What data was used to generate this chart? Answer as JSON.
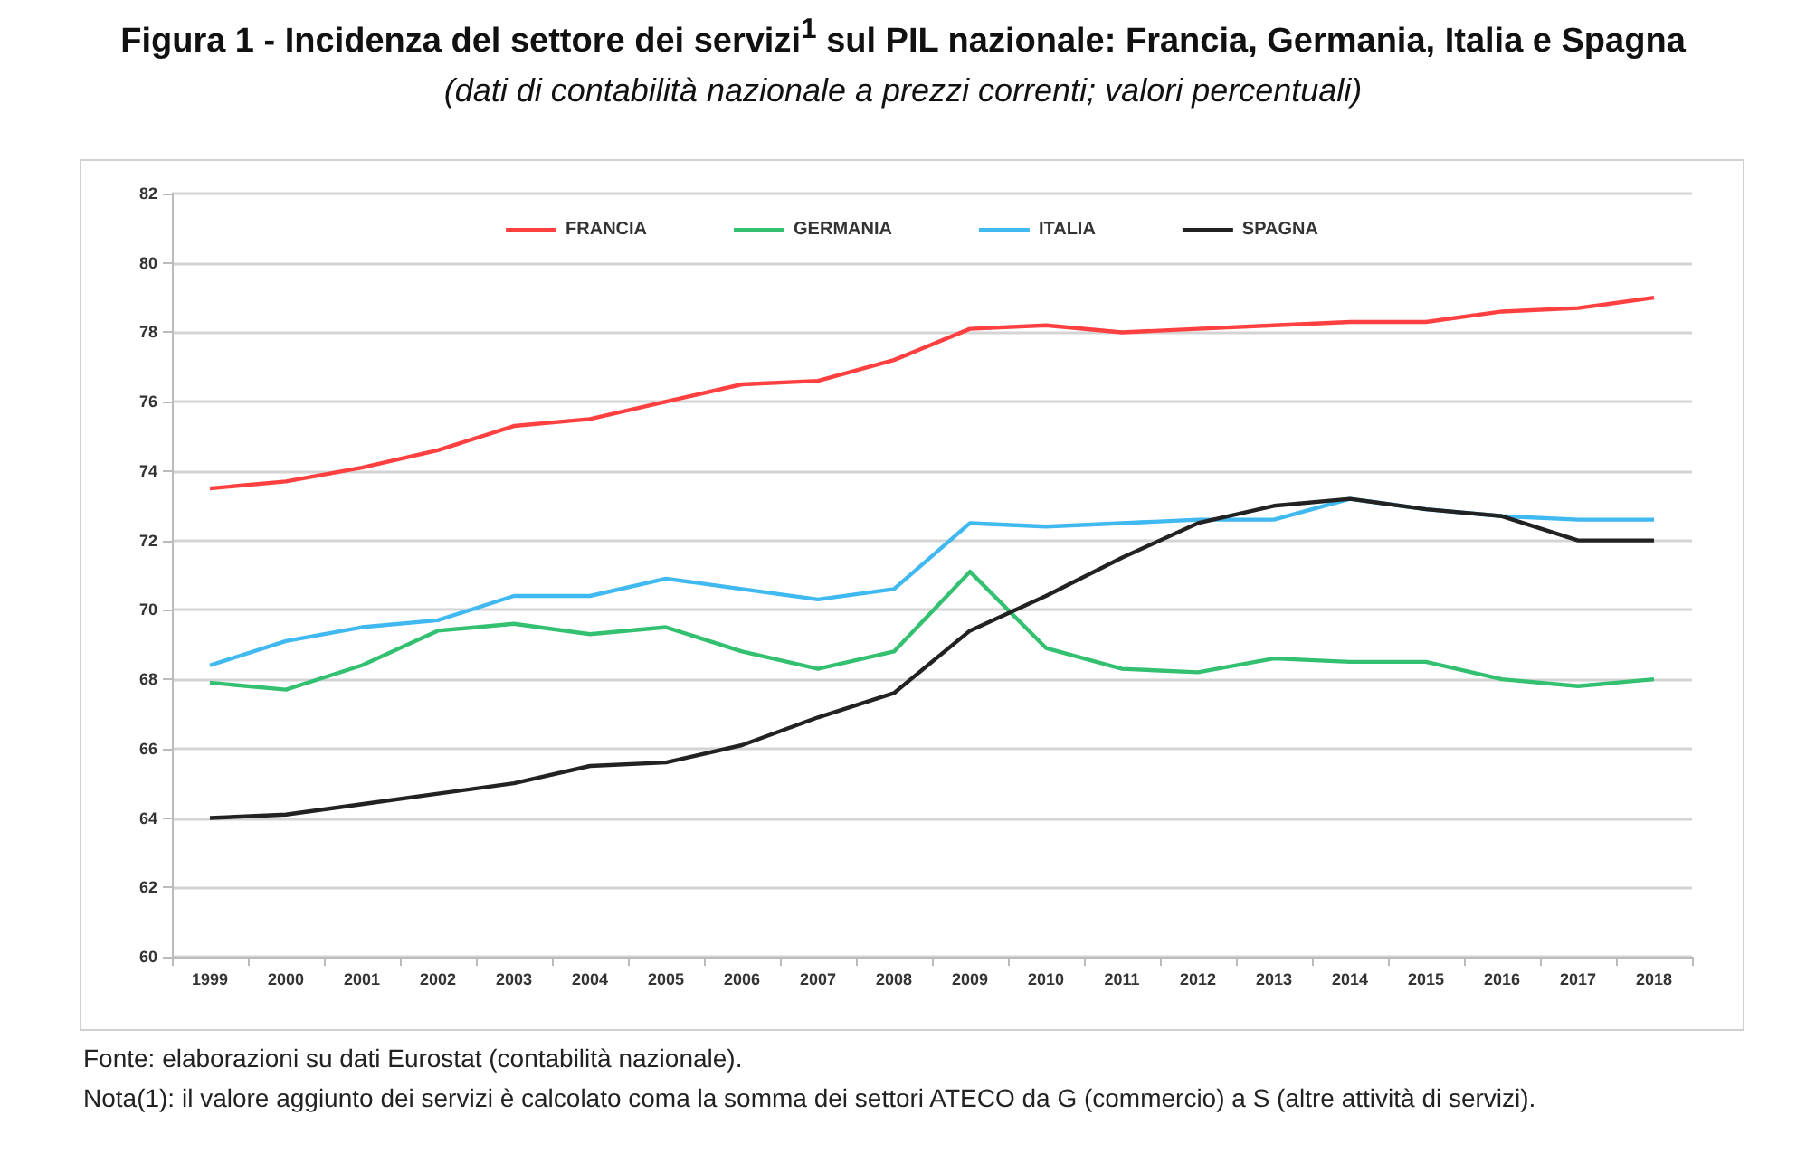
{
  "chart_data": {
    "type": "line",
    "title": "Figura 1 - Incidenza del settore dei servizi$^{1}$ sul PIL nazionale: Francia, Germania, Italia e Spagna",
    "subtitle": "(dati di contabilità nazionale a prezzi correnti; valori percentuali)",
    "categories": [
      "1999",
      "2000",
      "2001",
      "2002",
      "2003",
      "2004",
      "2005",
      "2006",
      "2007",
      "2008",
      "2009",
      "2010",
      "2011",
      "2012",
      "2013",
      "2014",
      "2015",
      "2016",
      "2017",
      "2018"
    ],
    "series": [
      {
        "name": "FRANCIA",
        "color": "#ff4040",
        "values": [
          73.5,
          73.7,
          74.1,
          74.6,
          75.3,
          75.5,
          76.0,
          76.5,
          76.6,
          77.2,
          78.1,
          78.2,
          78.0,
          78.1,
          78.2,
          78.3,
          78.3,
          78.6,
          78.7,
          79.0
        ]
      },
      {
        "name": "GERMANIA",
        "color": "#33c070",
        "values": [
          67.9,
          67.7,
          68.4,
          69.4,
          69.6,
          69.3,
          69.5,
          68.8,
          68.3,
          68.8,
          71.1,
          68.9,
          68.3,
          68.2,
          68.6,
          68.5,
          68.5,
          68.0,
          67.8,
          68.0
        ]
      },
      {
        "name": "ITALIA",
        "color": "#40b8f0",
        "values": [
          68.4,
          69.1,
          69.5,
          69.7,
          70.4,
          70.4,
          70.9,
          70.6,
          70.3,
          70.6,
          72.5,
          72.4,
          72.5,
          72.6,
          72.6,
          73.2,
          72.9,
          72.7,
          72.6,
          72.6
        ]
      },
      {
        "name": "SPAGNA",
        "color": "#222222",
        "values": [
          64.0,
          64.1,
          64.4,
          64.7,
          65.0,
          65.5,
          65.6,
          66.1,
          66.9,
          67.6,
          69.4,
          70.4,
          71.5,
          72.5,
          73.0,
          73.2,
          72.9,
          72.7,
          72.0,
          72.0
        ]
      }
    ],
    "ylim": [
      60,
      82
    ],
    "yticks": [
      60,
      62,
      64,
      66,
      68,
      70,
      72,
      74,
      76,
      78,
      80,
      82
    ],
    "grid": "y",
    "legend": "top",
    "marker": "none",
    "line_style": "solid",
    "annotations": [
      "Fonte: elaborazioni su dati Eurostat (contabilità nazionale).",
      "Nota(1): il valore aggiunto dei servizi è calcolato coma la somma dei settori ATECO da G (commercio) a S (altre attività di servizi)."
    ]
  }
}
